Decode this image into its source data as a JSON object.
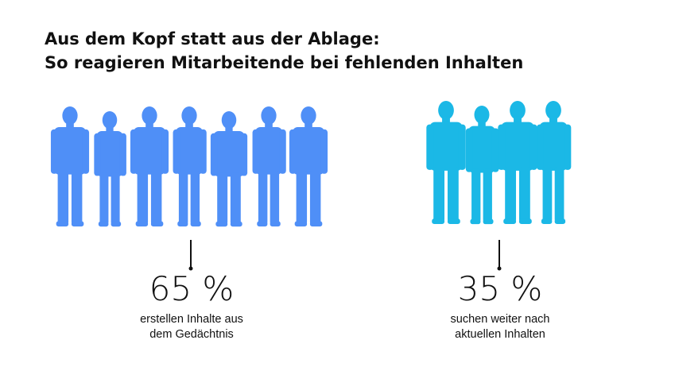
{
  "title": {
    "line1": "Aus dem Kopf statt aus der Ablage:",
    "line2": "So reagieren Mitarbeitende bei fehlenden Inhalten"
  },
  "chart_data": {
    "type": "pictogram",
    "unit": "%",
    "groups": [
      {
        "value": 65,
        "value_label": "65 %",
        "label_line1": "erstellen Inhalte aus",
        "label_line2": "dem Gedächtnis",
        "figure_count": 7,
        "color": "#4f8ff7"
      },
      {
        "value": 35,
        "value_label": "35 %",
        "label_line1": "suchen weiter nach",
        "label_line2": "aktuellen Inhalten",
        "figure_count": 4,
        "color": "#1bb8e6"
      }
    ]
  },
  "colors": {
    "text": "#111111",
    "leader_line": "#111111"
  },
  "icons": {
    "person": "person-silhouette-icon"
  }
}
